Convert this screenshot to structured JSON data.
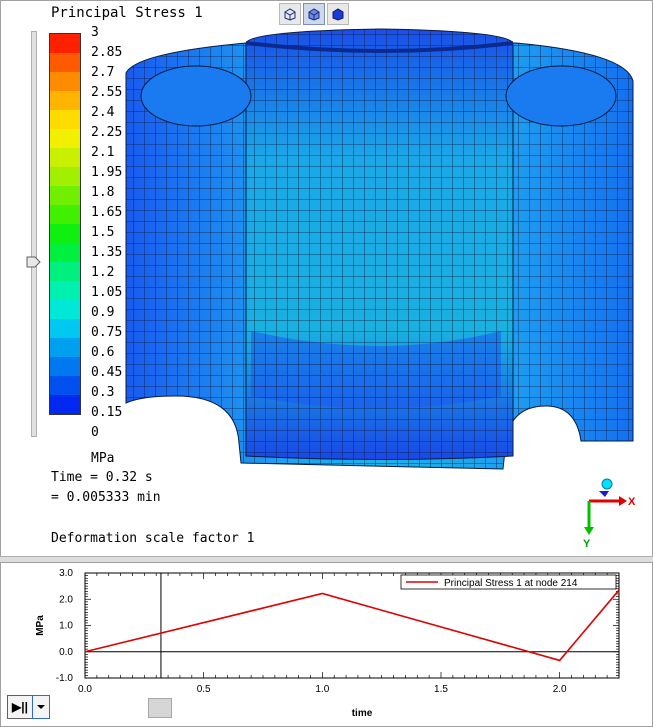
{
  "viewport": {
    "title": "Principal Stress 1",
    "unit": "MPa",
    "time_seconds": "Time = 0.32 s",
    "time_minutes": "= 0.005333 min",
    "deformation": "Deformation scale factor 1",
    "toolbar_icons": [
      "wireframe-cube-icon",
      "shaded-cube-icon",
      "solid-cube-icon"
    ],
    "axis_x_label": "X",
    "axis_y_label": "Y"
  },
  "legend": {
    "labels": [
      "3",
      "2.85",
      "2.7",
      "2.55",
      "2.4",
      "2.25",
      "2.1",
      "1.95",
      "1.8",
      "1.65",
      "1.5",
      "1.35",
      "1.2",
      "1.05",
      "0.9",
      "0.75",
      "0.6",
      "0.45",
      "0.3",
      "0.15",
      "0"
    ],
    "colors": [
      "#ff2000",
      "#ff5a00",
      "#ff8c00",
      "#ffb400",
      "#ffdc00",
      "#f0f000",
      "#c8f000",
      "#a0f000",
      "#70f000",
      "#40f000",
      "#10f010",
      "#00f040",
      "#00f080",
      "#00f0b0",
      "#00e8d8",
      "#00c8f0",
      "#00a0f0",
      "#0078f0",
      "#0050f0",
      "#0028f0"
    ]
  },
  "plot": {
    "chart_data": {
      "type": "line",
      "legend": "Principal Stress 1 at node 214",
      "xlabel": "time",
      "ylabel": "MPa",
      "xlim": [
        0.0,
        2.25
      ],
      "ylim": [
        -1.0,
        3.0
      ],
      "xticks": [
        "0.0",
        "0.5",
        "1.0",
        "1.5",
        "2.0"
      ],
      "yticks": [
        "3.0",
        "2.0",
        "1.0",
        "0.0",
        "-1.0"
      ],
      "current_time": 0.32,
      "x": [
        0.0,
        1.0,
        2.0,
        2.25
      ],
      "y": [
        0.0,
        2.22,
        -0.33,
        2.35
      ],
      "color": "#e00000"
    }
  },
  "controls": {
    "play_label": "▶||",
    "dropdown_icon": "chevron-down-icon"
  }
}
